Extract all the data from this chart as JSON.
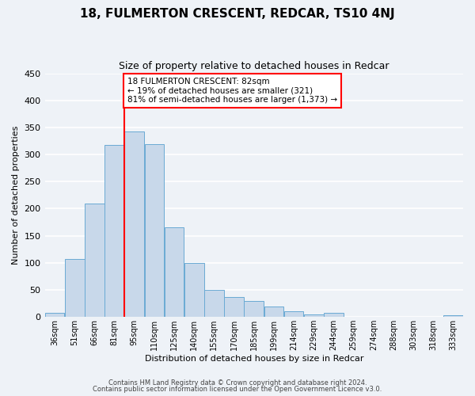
{
  "title": "18, FULMERTON CRESCENT, REDCAR, TS10 4NJ",
  "subtitle": "Size of property relative to detached houses in Redcar",
  "xlabel": "Distribution of detached houses by size in Redcar",
  "ylabel": "Number of detached properties",
  "bar_color": "#c8d8ea",
  "bar_edge_color": "#6aaad4",
  "background_color": "#eef2f7",
  "grid_color": "#ffffff",
  "categories": [
    "36sqm",
    "51sqm",
    "66sqm",
    "81sqm",
    "95sqm",
    "110sqm",
    "125sqm",
    "140sqm",
    "155sqm",
    "170sqm",
    "185sqm",
    "199sqm",
    "214sqm",
    "229sqm",
    "244sqm",
    "259sqm",
    "274sqm",
    "288sqm",
    "303sqm",
    "318sqm",
    "333sqm"
  ],
  "values": [
    7,
    107,
    210,
    318,
    343,
    320,
    166,
    99,
    50,
    36,
    29,
    19,
    10,
    4,
    7,
    0,
    0,
    0,
    0,
    0,
    2
  ],
  "ylim": [
    0,
    450
  ],
  "yticks": [
    0,
    50,
    100,
    150,
    200,
    250,
    300,
    350,
    400,
    450
  ],
  "annotation_title": "18 FULMERTON CRESCENT: 82sqm",
  "annotation_line1": "← 19% of detached houses are smaller (321)",
  "annotation_line2": "81% of semi-detached houses are larger (1,373) →",
  "marker_bin_index": 3,
  "footer1": "Contains HM Land Registry data © Crown copyright and database right 2024.",
  "footer2": "Contains public sector information licensed under the Open Government Licence v3.0.",
  "title_fontsize": 11,
  "subtitle_fontsize": 9,
  "ylabel_fontsize": 8,
  "xlabel_fontsize": 8
}
